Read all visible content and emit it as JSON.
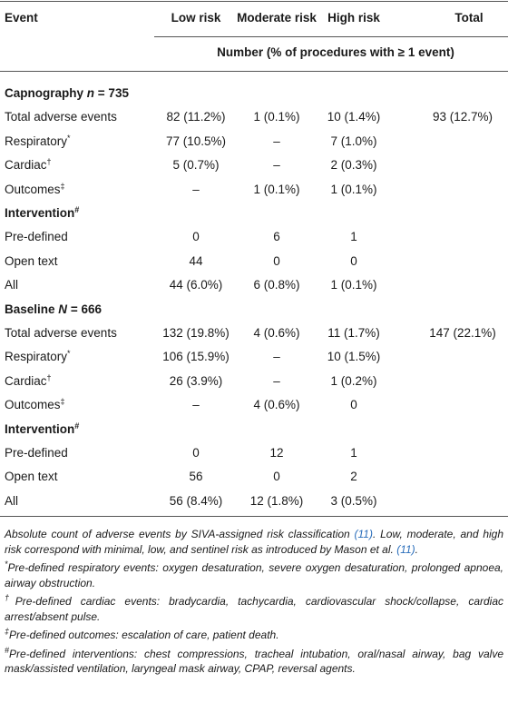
{
  "table": {
    "columns": [
      "Event",
      "Low risk",
      "Moderate risk",
      "High risk",
      "Total"
    ],
    "subheader": "Number (% of procedures with ≥ 1 event)",
    "rows": [
      {
        "label": "Capnography",
        "symbol": "n",
        "stat": "= 735"
      },
      {
        "label": "Total adverse events",
        "cells": [
          "82 (11.2%)",
          "1 (0.1%)",
          "10 (1.4%)",
          "93 (12.7%)"
        ]
      },
      {
        "label": "Respiratory",
        "mark": "*",
        "cells": [
          "77 (10.5%)",
          "–",
          "7 (1.0%)",
          null
        ]
      },
      {
        "label": "Cardiac",
        "mark": "†",
        "cells": [
          "5 (0.7%)",
          "–",
          "2 (0.3%)",
          null
        ]
      },
      {
        "label": "Outcomes",
        "mark": "‡",
        "cells": [
          "–",
          "1 (0.1%)",
          "1 (0.1%)",
          null
        ]
      },
      {
        "label": "Intervention",
        "mark": "#"
      },
      {
        "label": "Pre-defined",
        "cells": [
          "0",
          "6",
          "1",
          null
        ]
      },
      {
        "label": "Open text",
        "cells": [
          "44",
          "0",
          "0",
          null
        ]
      },
      {
        "label": "All",
        "cells": [
          "44 (6.0%)",
          "6 (0.8%)",
          "1 (0.1%)",
          null
        ]
      },
      {
        "label": "Baseline",
        "symbol": "N",
        "stat": "= 666"
      },
      {
        "label": "Total adverse events",
        "cells": [
          "132 (19.8%)",
          "4 (0.6%)",
          "11 (1.7%)",
          "147 (22.1%)"
        ]
      },
      {
        "label": "Respiratory",
        "mark": "*",
        "cells": [
          "106 (15.9%)",
          "–",
          "10 (1.5%)",
          null
        ]
      },
      {
        "label": "Cardiac",
        "mark": "†",
        "cells": [
          "26 (3.9%)",
          "–",
          "1 (0.2%)",
          null
        ]
      },
      {
        "label": "Outcomes",
        "mark": "‡",
        "cells": [
          "–",
          "4 (0.6%)",
          "0",
          null
        ]
      },
      {
        "label": "Intervention",
        "mark": "#"
      },
      {
        "label": "Pre-defined",
        "cells": [
          "0",
          "12",
          "1",
          null
        ]
      },
      {
        "label": "Open text",
        "cells": [
          "56",
          "0",
          "2",
          null
        ]
      },
      {
        "label": "All",
        "cells": [
          "56 (8.4%)",
          "12 (1.8%)",
          "3 (0.5%)",
          null
        ]
      }
    ]
  },
  "footnotes": [
    {
      "segments": [
        {
          "text": "Absolute count of adverse events by SIVA-assigned risk classification "
        },
        {
          "ref": "(11)"
        },
        {
          "text": ". Low, moderate, and high risk correspond with minimal, low, and sentinel risk as introduced by Mason et al. "
        },
        {
          "ref": "(11)"
        },
        {
          "text": "."
        }
      ]
    },
    {
      "mark": "*",
      "text": "Pre-defined respiratory events: oxygen desaturation, severe oxygen desaturation, prolonged apnoea, airway obstruction."
    },
    {
      "mark": "†",
      "text": "Pre-defined cardiac events: bradycardia, tachycardia, cardiovascular shock/collapse, cardiac arrest/absent pulse."
    },
    {
      "mark": "‡",
      "text": "Pre-defined outcomes: escalation of care, patient death."
    },
    {
      "mark": "#",
      "text": "Pre-defined interventions: chest compressions, tracheal intubation, oral/nasal airway, bag valve mask/assisted ventilation, laryngeal mask airway, CPAP, reversal agents."
    }
  ]
}
